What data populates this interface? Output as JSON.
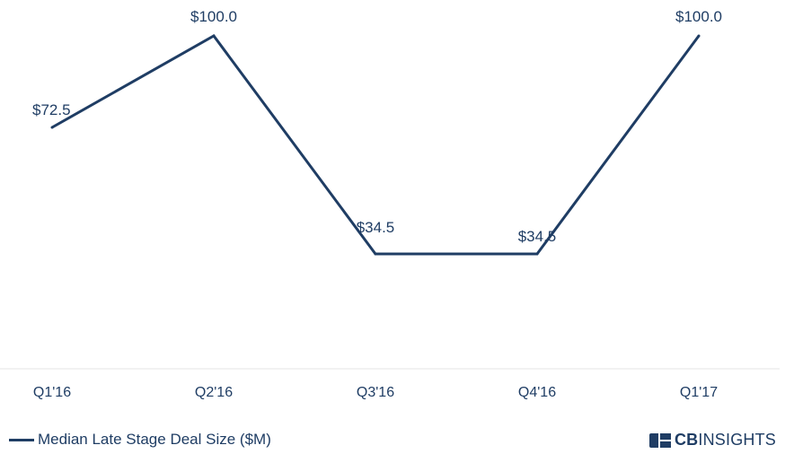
{
  "chart_data": {
    "type": "line",
    "categories": [
      "Q1'16",
      "Q2'16",
      "Q3'16",
      "Q4'16",
      "Q1'17"
    ],
    "series": [
      {
        "name": "Median Late Stage Deal Size ($M)",
        "values": [
          72.5,
          100.0,
          34.5,
          34.5,
          100.0
        ],
        "labels": [
          "$72.5",
          "$100.0",
          "$34.5",
          "$34.5",
          "$100.0"
        ]
      }
    ],
    "ylim": [
      0,
      100
    ],
    "grid": false,
    "legend_position": "bottom-left",
    "line_color": "#1f3d64"
  },
  "legend": {
    "label": "Median Late Stage Deal Size ($M)"
  },
  "brand": {
    "bold": "CB",
    "regular": "INSIGHTS",
    "icon": "cbinsights-logo-icon"
  },
  "colors": {
    "primary": "#1f3d64",
    "axis": "#e5e5e5"
  }
}
